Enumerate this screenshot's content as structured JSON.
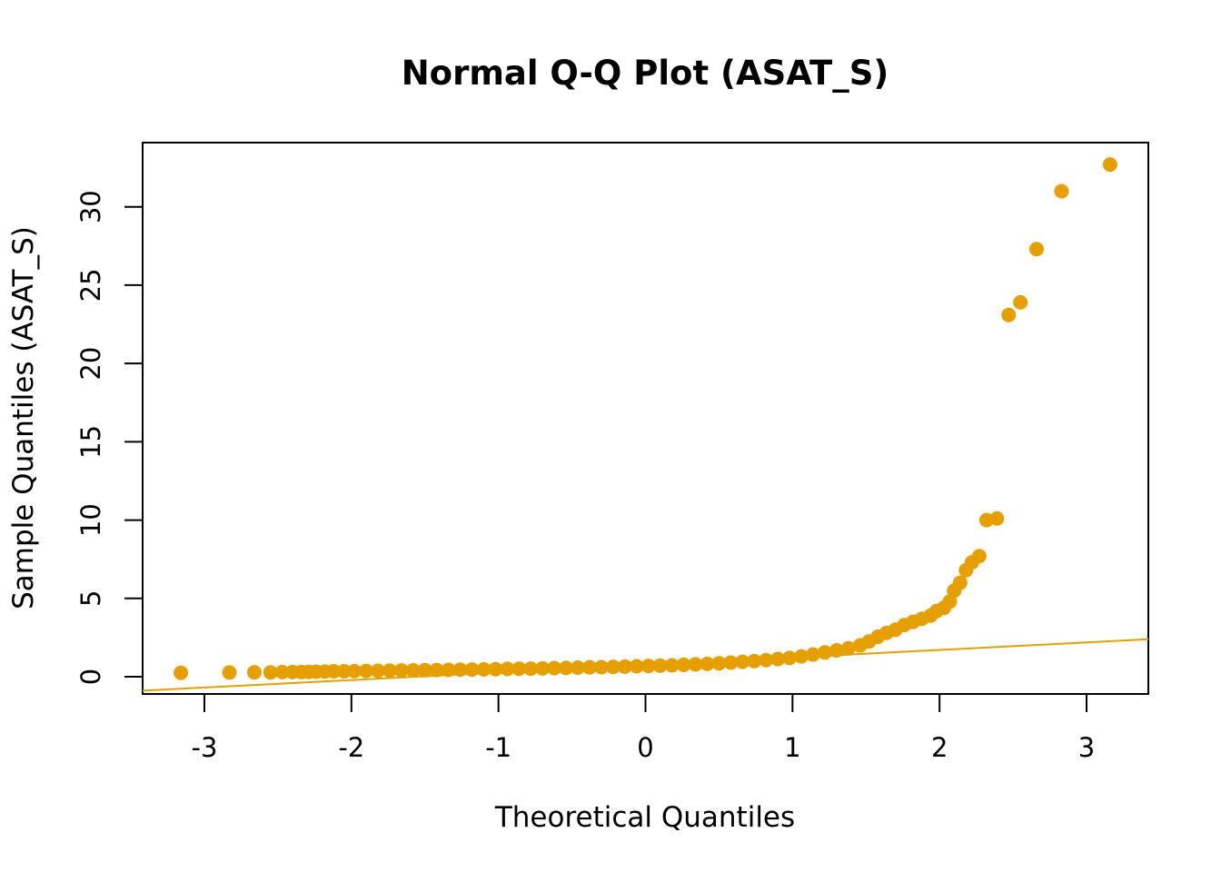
{
  "chart_data": {
    "type": "scatter",
    "title": "Normal Q-Q Plot (ASAT_S)",
    "xlabel": "Theoretical Quantiles",
    "ylabel": "Sample Quantiles (ASAT_S)",
    "xlim": [
      -3.42,
      3.42
    ],
    "ylim": [
      -1.1,
      34.1
    ],
    "x_ticks": [
      -3,
      -2,
      -1,
      0,
      1,
      2,
      3
    ],
    "y_ticks": [
      0,
      5,
      10,
      15,
      20,
      25,
      30
    ],
    "grid": false,
    "legend": "none",
    "point_color": "#E69F00",
    "line_color": "#E69F00",
    "reference_line": {
      "intercept": 0.75,
      "slope": 0.48
    },
    "series": [
      {
        "values": [
          [
            -3.16,
            0.25
          ],
          [
            -2.83,
            0.27
          ],
          [
            -2.66,
            0.28
          ],
          [
            -2.55,
            0.28
          ],
          [
            -2.47,
            0.3
          ],
          [
            -2.4,
            0.3
          ],
          [
            -2.34,
            0.3
          ],
          [
            -2.29,
            0.31
          ],
          [
            -2.24,
            0.32
          ],
          [
            -2.18,
            0.33
          ],
          [
            -2.12,
            0.35
          ],
          [
            -2.05,
            0.35
          ],
          [
            -1.98,
            0.36
          ],
          [
            -1.9,
            0.37
          ],
          [
            -1.82,
            0.38
          ],
          [
            -1.74,
            0.39
          ],
          [
            -1.66,
            0.4
          ],
          [
            -1.58,
            0.41
          ],
          [
            -1.5,
            0.42
          ],
          [
            -1.42,
            0.43
          ],
          [
            -1.34,
            0.44
          ],
          [
            -1.26,
            0.45
          ],
          [
            -1.18,
            0.46
          ],
          [
            -1.1,
            0.47
          ],
          [
            -1.02,
            0.48
          ],
          [
            -0.94,
            0.5
          ],
          [
            -0.86,
            0.51
          ],
          [
            -0.78,
            0.52
          ],
          [
            -0.7,
            0.53
          ],
          [
            -0.62,
            0.55
          ],
          [
            -0.54,
            0.56
          ],
          [
            -0.46,
            0.58
          ],
          [
            -0.38,
            0.6
          ],
          [
            -0.3,
            0.61
          ],
          [
            -0.22,
            0.63
          ],
          [
            -0.14,
            0.65
          ],
          [
            -0.06,
            0.67
          ],
          [
            0.02,
            0.69
          ],
          [
            0.1,
            0.71
          ],
          [
            0.18,
            0.73
          ],
          [
            0.26,
            0.76
          ],
          [
            0.34,
            0.79
          ],
          [
            0.42,
            0.82
          ],
          [
            0.5,
            0.86
          ],
          [
            0.58,
            0.9
          ],
          [
            0.66,
            0.95
          ],
          [
            0.74,
            1.0
          ],
          [
            0.82,
            1.06
          ],
          [
            0.9,
            1.13
          ],
          [
            0.98,
            1.2
          ],
          [
            1.06,
            1.3
          ],
          [
            1.14,
            1.42
          ],
          [
            1.22,
            1.55
          ],
          [
            1.3,
            1.68
          ],
          [
            1.38,
            1.82
          ],
          [
            1.46,
            2.0
          ],
          [
            1.52,
            2.25
          ],
          [
            1.58,
            2.55
          ],
          [
            1.64,
            2.8
          ],
          [
            1.7,
            3.0
          ],
          [
            1.76,
            3.3
          ],
          [
            1.82,
            3.5
          ],
          [
            1.88,
            3.7
          ],
          [
            1.94,
            3.9
          ],
          [
            1.98,
            4.2
          ],
          [
            2.03,
            4.4
          ],
          [
            2.07,
            4.8
          ],
          [
            2.1,
            5.5
          ],
          [
            2.14,
            6.0
          ],
          [
            2.18,
            6.8
          ],
          [
            2.22,
            7.3
          ],
          [
            2.27,
            7.7
          ],
          [
            2.32,
            10.0
          ],
          [
            2.39,
            10.1
          ],
          [
            2.47,
            23.1
          ],
          [
            2.55,
            23.9
          ],
          [
            2.66,
            27.3
          ],
          [
            2.83,
            31.0
          ],
          [
            3.16,
            32.7
          ]
        ]
      }
    ]
  }
}
